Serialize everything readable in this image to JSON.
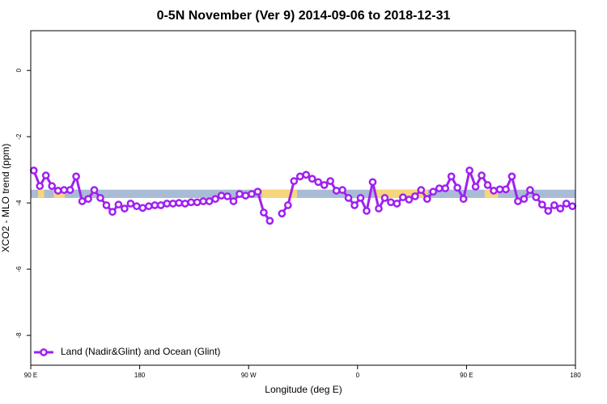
{
  "chart_data": {
    "type": "line",
    "title": "0-5N November (Ver 9)   2014-09-06 to 2018-12-31",
    "x_label": "Longitude (deg E)",
    "y_label": "XCO2 - MLO trend (ppm)",
    "xlim": [
      90,
      540
    ],
    "ylim": [
      -8.9,
      1.2
    ],
    "xticks": [
      {
        "value": 90,
        "label": "90 E"
      },
      {
        "value": 180,
        "label": "180"
      },
      {
        "value": 270,
        "label": "90 W"
      },
      {
        "value": 360,
        "label": "0"
      },
      {
        "value": 450,
        "label": "90 E"
      },
      {
        "value": 540,
        "label": "180"
      }
    ],
    "yticks": [
      0,
      -2,
      -4,
      -6,
      -8
    ],
    "legend": "bottom-left",
    "band": {
      "ymin": -3.85,
      "ymax": -3.6,
      "segments": [
        {
          "x0": 90,
          "x1": 540,
          "color": "#a9bcd6"
        },
        {
          "x0": 96,
          "x1": 101,
          "color": "#f6d67c"
        },
        {
          "x0": 109,
          "x1": 118,
          "color": "#f6d67c"
        },
        {
          "x0": 281,
          "x1": 310,
          "color": "#f6d67c"
        },
        {
          "x0": 374,
          "x1": 418,
          "color": "#f6d67c"
        },
        {
          "x0": 465,
          "x1": 476,
          "color": "#f6d67c"
        }
      ]
    },
    "x": [
      92.5,
      97.5,
      102.5,
      107.5,
      112.5,
      117.5,
      122.5,
      127.5,
      132.5,
      137.5,
      142.5,
      147.5,
      152.5,
      157.5,
      162.5,
      167.5,
      172.5,
      177.5,
      182.5,
      187.5,
      192.5,
      197.5,
      202.5,
      207.5,
      212.5,
      217.5,
      222.5,
      227.5,
      232.5,
      237.5,
      242.5,
      247.5,
      252.5,
      257.5,
      262.5,
      267.5,
      272.5,
      277.5,
      282.5,
      287.5,
      292.5,
      297.5,
      302.5,
      307.5,
      312.5,
      317.5,
      322.5,
      327.5,
      332.5,
      337.5,
      342.5,
      347.5,
      352.5,
      357.5,
      362.5,
      367.5,
      372.5,
      377.5,
      382.5,
      387.5,
      392.5,
      397.5,
      402.5,
      407.5,
      412.5,
      417.5,
      422.5,
      427.5,
      432.5,
      437.5,
      442.5,
      447.5,
      452.5,
      457.5,
      462.5,
      467.5,
      472.5,
      477.5,
      482.5,
      487.5,
      492.5,
      497.5,
      502.5,
      507.5,
      512.5,
      517.5,
      522.5,
      527.5,
      532.5,
      537.5
    ],
    "series": [
      {
        "name": "Land (Nadir&Glint) and Ocean (Glint)",
        "color": "#a020f0",
        "values": [
          -3.02,
          -3.49,
          -3.17,
          -3.49,
          -3.63,
          -3.61,
          -3.61,
          -3.2,
          -3.95,
          -3.88,
          -3.61,
          -3.85,
          -4.07,
          -4.27,
          -4.05,
          -4.17,
          -4.02,
          -4.1,
          -4.15,
          -4.1,
          -4.07,
          -4.07,
          -4.02,
          -4.02,
          -4.0,
          -4.02,
          -3.98,
          -3.98,
          -3.95,
          -3.95,
          -3.88,
          -3.78,
          -3.8,
          -3.95,
          -3.73,
          -3.78,
          -3.73,
          -3.66,
          -4.29,
          -4.54,
          null,
          -4.32,
          -4.07,
          -3.34,
          -3.2,
          -3.15,
          -3.27,
          -3.37,
          -3.46,
          -3.34,
          -3.63,
          -3.61,
          -3.85,
          -4.07,
          -3.85,
          -4.24,
          -3.37,
          -4.17,
          -3.85,
          -3.98,
          -4.02,
          -3.83,
          -3.9,
          -3.8,
          -3.61,
          -3.88,
          -3.66,
          -3.56,
          -3.56,
          -3.2,
          -3.54,
          -3.88,
          -3.02,
          -3.51,
          -3.17,
          -3.46,
          -3.63,
          -3.59,
          -3.59,
          -3.2,
          -3.95,
          -3.88,
          -3.61,
          -3.83,
          -4.05,
          -4.24,
          -4.07,
          -4.17,
          -4.02,
          -4.1
        ]
      }
    ]
  }
}
